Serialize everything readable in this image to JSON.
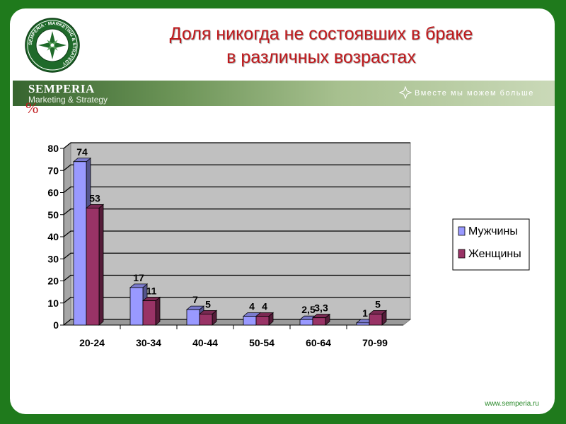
{
  "title": {
    "line1": "Доля никогда не состоявших в браке",
    "line2": "в различных возрастах"
  },
  "brand": {
    "seal_text": "SEMPERIA · MARKETING & STRATEGY",
    "name": "SEMPERIA",
    "subtitle": "Marketing & Strategy",
    "motto": "Вместе мы можем больше",
    "website": "www.semperia.ru",
    "accent_green": "#1f7a1c",
    "title_red": "#c0191c"
  },
  "unit_label": "%",
  "chart_data": {
    "type": "bar",
    "categories": [
      "20-24",
      "30-34",
      "40-44",
      "50-54",
      "60-64",
      "70-99"
    ],
    "series": [
      {
        "name": "Мужчины",
        "values": [
          74,
          17,
          7,
          4,
          2.5,
          1
        ],
        "labels": [
          "74",
          "17",
          "7",
          "4",
          "2,5",
          "1"
        ],
        "color": "#9999ff"
      },
      {
        "name": "Женщины",
        "values": [
          53,
          11,
          5,
          4,
          3.3,
          5
        ],
        "labels": [
          "53",
          "11",
          "5",
          "4",
          "3,3",
          "5"
        ],
        "color": "#993366"
      }
    ],
    "ylim": [
      0,
      80
    ],
    "yticks": [
      0,
      10,
      20,
      30,
      40,
      50,
      60,
      70,
      80
    ],
    "grid": true,
    "legend_position": "right",
    "plot_background": "#c0c0c0"
  }
}
